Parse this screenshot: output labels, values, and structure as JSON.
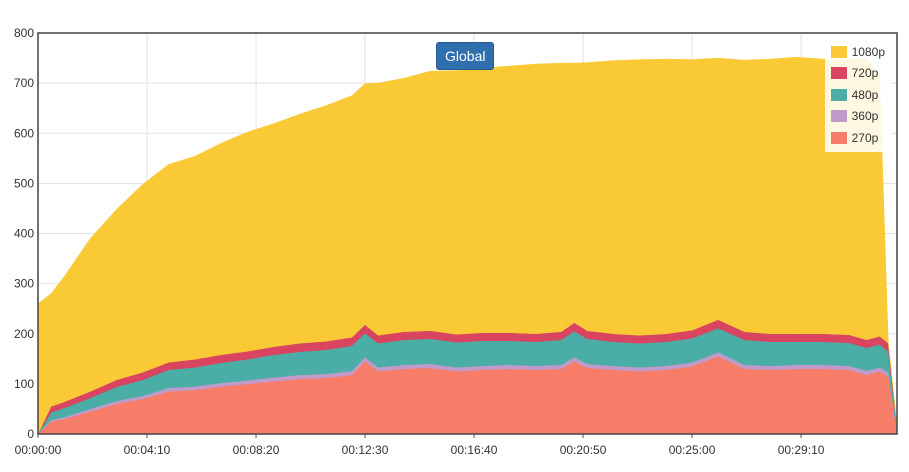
{
  "chart_data": {
    "type": "area",
    "stacked": true,
    "title": "Global",
    "xlabel": "",
    "ylabel": "",
    "ylim": [
      0,
      800
    ],
    "yticks": [
      0,
      100,
      200,
      300,
      400,
      500,
      600,
      700,
      800
    ],
    "xticks": [
      "00:00:00",
      "00:04:10",
      "00:08:20",
      "00:12:30",
      "00:16:40",
      "00:20:50",
      "00:25:00",
      "00:29:10"
    ],
    "xlim_seconds": [
      0,
      1970
    ],
    "grid": true,
    "legend_position": "top-right",
    "x_seconds": [
      0,
      30,
      60,
      120,
      180,
      240,
      300,
      360,
      420,
      480,
      540,
      600,
      660,
      720,
      750,
      780,
      840,
      900,
      960,
      1020,
      1080,
      1140,
      1200,
      1230,
      1260,
      1320,
      1380,
      1440,
      1500,
      1560,
      1620,
      1680,
      1740,
      1800,
      1860,
      1900,
      1930,
      1950,
      1970
    ],
    "series": [
      {
        "name": "270p",
        "color": "#f77d68",
        "values": [
          0,
          25,
          30,
          45,
          60,
          70,
          85,
          88,
          95,
          100,
          105,
          110,
          112,
          118,
          145,
          125,
          130,
          132,
          125,
          128,
          130,
          128,
          130,
          145,
          132,
          128,
          125,
          128,
          135,
          155,
          130,
          128,
          130,
          130,
          128,
          118,
          125,
          115,
          5
        ]
      },
      {
        "name": "360p",
        "color": "#c09ac9",
        "values": [
          0,
          3,
          4,
          5,
          6,
          6,
          7,
          7,
          7,
          7,
          8,
          8,
          8,
          8,
          8,
          8,
          8,
          8,
          8,
          8,
          8,
          8,
          8,
          8,
          8,
          8,
          8,
          8,
          8,
          8,
          8,
          8,
          8,
          8,
          8,
          8,
          8,
          8,
          0
        ]
      },
      {
        "name": "480p",
        "color": "#4aaea7",
        "values": [
          0,
          15,
          18,
          22,
          28,
          32,
          36,
          38,
          40,
          42,
          45,
          46,
          48,
          50,
          48,
          48,
          50,
          50,
          50,
          50,
          48,
          48,
          50,
          52,
          50,
          48,
          48,
          48,
          48,
          48,
          50,
          48,
          46,
          46,
          46,
          46,
          46,
          42,
          5
        ]
      },
      {
        "name": "720p",
        "color": "#d94460",
        "values": [
          0,
          12,
          12,
          13,
          14,
          15,
          15,
          16,
          16,
          16,
          16,
          17,
          17,
          17,
          17,
          16,
          16,
          16,
          16,
          16,
          16,
          16,
          16,
          17,
          16,
          16,
          16,
          16,
          16,
          17,
          16,
          16,
          16,
          16,
          16,
          16,
          16,
          16,
          5
        ]
      },
      {
        "name": "1080p",
        "color": "#f9ca35",
        "values": [
          260,
          225,
          250,
          305,
          340,
          375,
          395,
          405,
          422,
          437,
          445,
          457,
          470,
          482,
          481,
          503,
          506,
          518,
          526,
          528,
          532,
          538,
          536,
          518,
          535,
          545,
          550,
          548,
          540,
          522,
          542,
          548,
          552,
          548,
          550,
          562,
          520,
          0,
          0
        ]
      }
    ]
  }
}
